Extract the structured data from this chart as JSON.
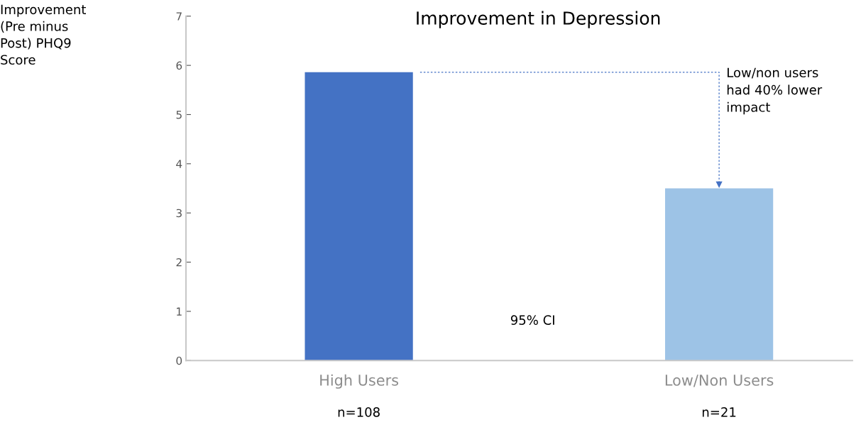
{
  "chart_data": {
    "type": "bar",
    "title": "Improvement in Depression",
    "categories": [
      "High Users",
      "Low/Non Users"
    ],
    "values": [
      5.86,
      3.5
    ],
    "colors": [
      "#4472c4",
      "#9dc3e6"
    ],
    "ylim": [
      0,
      7
    ],
    "yticks": [
      0,
      1,
      2,
      3,
      4,
      5,
      6,
      7
    ],
    "grid": false,
    "legend": false,
    "annotations": [
      "n=108",
      "n=21",
      "95% CI",
      "Low/non users\nhad 40% lower\nimpact",
      "Improvement\n(Pre minus\nPost) PHQ9\nScore"
    ]
  }
}
